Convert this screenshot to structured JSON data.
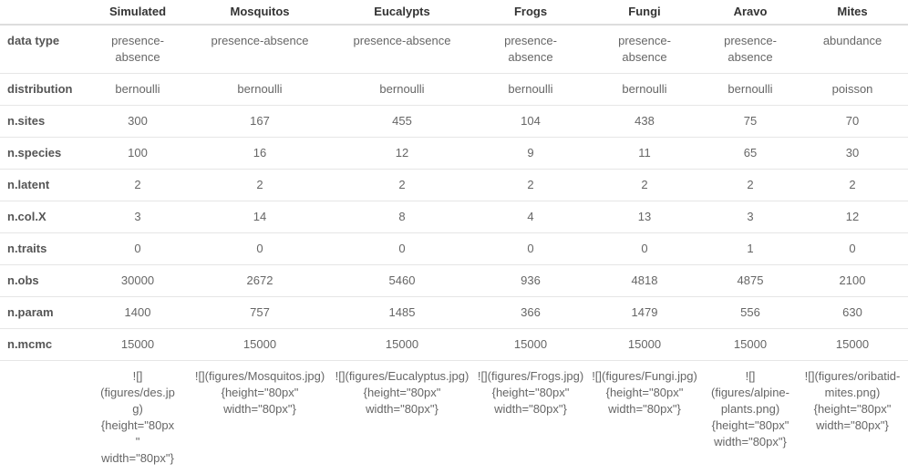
{
  "header": {
    "corner": "",
    "columns": [
      "Simulated",
      "Mosquitos",
      "Eucalypts",
      "Frogs",
      "Fungi",
      "Aravo",
      "Mites"
    ]
  },
  "rows": [
    {
      "label": "data type",
      "values": [
        "presence-absence",
        "presence-absence",
        "presence-absence",
        "presence-absence",
        "presence-absence",
        "presence-absence",
        "abundance"
      ]
    },
    {
      "label": "distribution",
      "values": [
        "bernoulli",
        "bernoulli",
        "bernoulli",
        "bernoulli",
        "bernoulli",
        "bernoulli",
        "poisson"
      ]
    },
    {
      "label": "n.sites",
      "values": [
        "300",
        "167",
        "455",
        "104",
        "438",
        "75",
        "70"
      ]
    },
    {
      "label": "n.species",
      "values": [
        "100",
        "16",
        "12",
        "9",
        "11",
        "65",
        "30"
      ]
    },
    {
      "label": "n.latent",
      "values": [
        "2",
        "2",
        "2",
        "2",
        "2",
        "2",
        "2"
      ]
    },
    {
      "label": "n.col.X",
      "values": [
        "3",
        "14",
        "8",
        "4",
        "13",
        "3",
        "12"
      ]
    },
    {
      "label": "n.traits",
      "values": [
        "0",
        "0",
        "0",
        "0",
        "0",
        "1",
        "0"
      ]
    },
    {
      "label": "n.obs",
      "values": [
        "30000",
        "2672",
        "5460",
        "936",
        "4818",
        "4875",
        "2100"
      ]
    },
    {
      "label": "n.param",
      "values": [
        "1400",
        "757",
        "1485",
        "366",
        "1479",
        "556",
        "630"
      ]
    },
    {
      "label": "n.mcmc",
      "values": [
        "15000",
        "15000",
        "15000",
        "15000",
        "15000",
        "15000",
        "15000"
      ]
    },
    {
      "label": "",
      "values": [
        "![](figures/des.jpg){height=\"80px\" width=\"80px\"}",
        "![](figures/Mosquitos.jpg){height=\"80px\" width=\"80px\"}",
        "![](figures/Eucalyptus.jpg){height=\"80px\" width=\"80px\"}",
        "![](figures/Frogs.jpg){height=\"80px\" width=\"80px\"}",
        "![](figures/Fungi.jpg){height=\"80px\" width=\"80px\"}",
        "![](figures/alpine-plants.png){height=\"80px\" width=\"80px\"}",
        "![](figures/oribatid-mites.png){height=\"80px\" width=\"80px\"}"
      ]
    }
  ]
}
